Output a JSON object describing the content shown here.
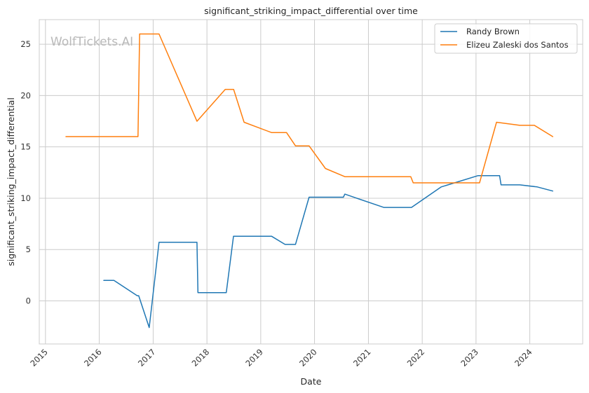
{
  "chart_data": {
    "type": "line",
    "title": "significant_striking_impact_differential over time",
    "xlabel": "Date",
    "ylabel": "significant_striking_impact_differential",
    "watermark": "WolfTickets.AI",
    "xlim": [
      "2014-11-20",
      "2024-12-25"
    ],
    "ylim": [
      -4.2,
      27.4
    ],
    "x_ticks": [
      "2015",
      "2016",
      "2017",
      "2018",
      "2019",
      "2020",
      "2021",
      "2022",
      "2023",
      "2024"
    ],
    "y_ticks": [
      0,
      5,
      10,
      15,
      20,
      25
    ],
    "grid": true,
    "legend_position": "top-right",
    "series": [
      {
        "name": "Randy Brown",
        "color": "#1f77b4",
        "points": [
          [
            "2016-02-01",
            2.0
          ],
          [
            "2016-04-10",
            2.0
          ],
          [
            "2016-09-15",
            0.5
          ],
          [
            "2016-09-25",
            0.5
          ],
          [
            "2016-12-05",
            -2.6
          ],
          [
            "2017-02-10",
            5.7
          ],
          [
            "2017-10-25",
            5.7
          ],
          [
            "2017-11-01",
            0.8
          ],
          [
            "2018-05-12",
            0.8
          ],
          [
            "2018-06-30",
            6.3
          ],
          [
            "2019-03-15",
            6.3
          ],
          [
            "2019-06-15",
            5.5
          ],
          [
            "2019-08-25",
            5.5
          ],
          [
            "2019-11-25",
            10.1
          ],
          [
            "2020-07-15",
            10.1
          ],
          [
            "2020-07-25",
            10.4
          ],
          [
            "2021-04-15",
            9.1
          ],
          [
            "2021-10-20",
            9.1
          ],
          [
            "2022-05-10",
            11.1
          ],
          [
            "2023-01-15",
            12.2
          ],
          [
            "2023-06-10",
            12.2
          ],
          [
            "2023-06-20",
            11.3
          ],
          [
            "2023-10-25",
            11.3
          ],
          [
            "2024-02-20",
            11.1
          ],
          [
            "2024-06-05",
            10.7
          ]
        ]
      },
      {
        "name": "Elizeu Zaleski dos Santos",
        "color": "#ff7f0e",
        "points": [
          [
            "2015-05-20",
            16.0
          ],
          [
            "2016-09-20",
            16.0
          ],
          [
            "2016-10-01",
            26.0
          ],
          [
            "2017-02-10",
            26.0
          ],
          [
            "2017-10-25",
            17.5
          ],
          [
            "2018-05-05",
            20.6
          ],
          [
            "2018-07-01",
            20.6
          ],
          [
            "2018-09-10",
            17.4
          ],
          [
            "2019-03-15",
            16.4
          ],
          [
            "2019-06-25",
            16.4
          ],
          [
            "2019-08-25",
            15.1
          ],
          [
            "2019-11-25",
            15.1
          ],
          [
            "2020-03-15",
            12.9
          ],
          [
            "2020-07-25",
            12.1
          ],
          [
            "2021-10-15",
            12.1
          ],
          [
            "2021-11-01",
            11.5
          ],
          [
            "2023-01-25",
            11.5
          ],
          [
            "2023-05-20",
            17.4
          ],
          [
            "2023-10-25",
            17.1
          ],
          [
            "2024-02-01",
            17.1
          ],
          [
            "2024-06-05",
            16.0
          ]
        ]
      }
    ]
  }
}
